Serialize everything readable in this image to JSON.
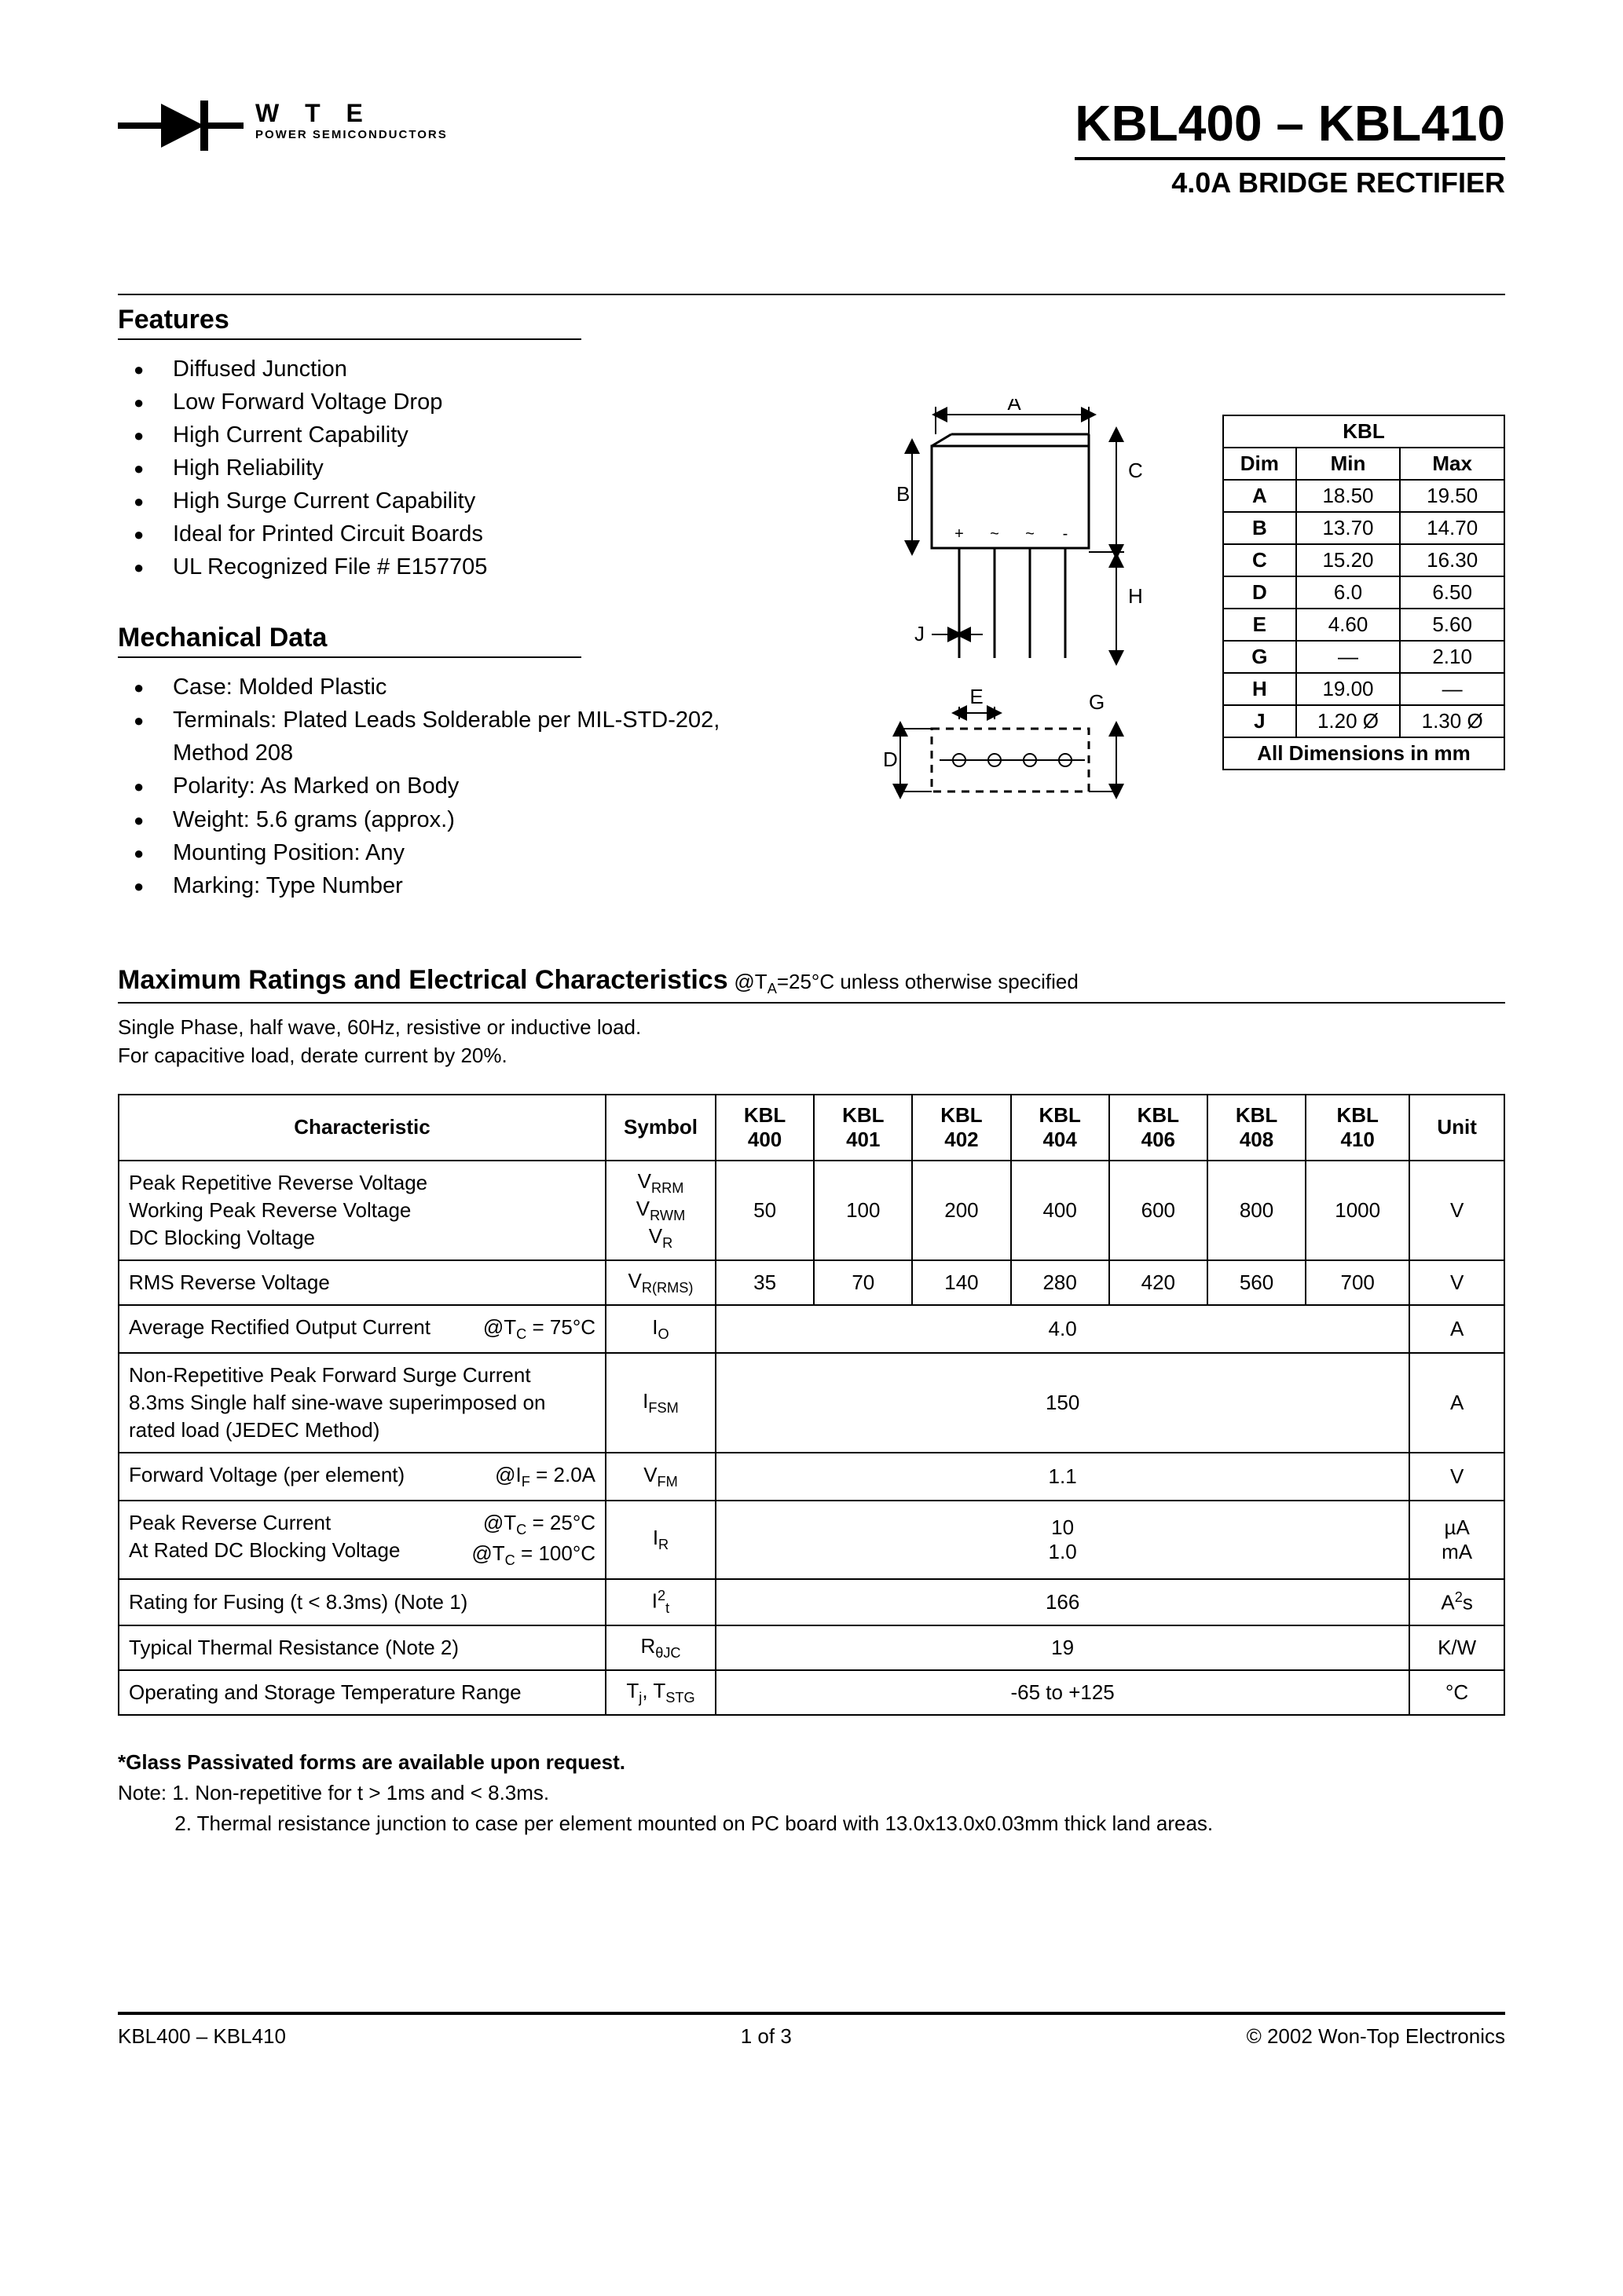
{
  "header": {
    "logo_letters": "W T E",
    "logo_sub": "POWER SEMICONDUCTORS",
    "title_main": "KBL400 – KBL410",
    "title_sub": "4.0A BRIDGE RECTIFIER"
  },
  "features": {
    "title": "Features",
    "items": [
      "Diffused Junction",
      "Low Forward Voltage Drop",
      "High Current Capability",
      "High Reliability",
      "High Surge Current Capability",
      "Ideal for Printed Circuit Boards",
      "UL Recognized File # E157705"
    ]
  },
  "mechanical": {
    "title": "Mechanical Data",
    "items": [
      "Case: Molded Plastic",
      "Terminals: Plated Leads Solderable per MIL-STD-202, Method 208",
      "Polarity: As Marked on Body",
      "Weight: 5.6 grams (approx.)",
      "Mounting Position: Any",
      "Marking: Type Number"
    ]
  },
  "diagram": {
    "labels": [
      "A",
      "B",
      "C",
      "D",
      "E",
      "G",
      "H",
      "J"
    ],
    "terminal_marks": [
      "+",
      "~",
      "~",
      "-"
    ]
  },
  "dimensions": {
    "header_span": "KBL",
    "cols": [
      "Dim",
      "Min",
      "Max"
    ],
    "rows": [
      [
        "A",
        "18.50",
        "19.50"
      ],
      [
        "B",
        "13.70",
        "14.70"
      ],
      [
        "C",
        "15.20",
        "16.30"
      ],
      [
        "D",
        "6.0",
        "6.50"
      ],
      [
        "E",
        "4.60",
        "5.60"
      ],
      [
        "G",
        "—",
        "2.10"
      ],
      [
        "H",
        "19.00",
        "—"
      ],
      [
        "J",
        "1.20 Ø",
        "1.30 Ø"
      ]
    ],
    "caption": "All Dimensions in mm"
  },
  "ratings": {
    "title": "Maximum Ratings and Electrical Characteristics",
    "condition": "@T",
    "condition_sub": "A",
    "condition_rest": "=25°C unless otherwise specified",
    "note1": "Single Phase, half wave, 60Hz, resistive or inductive load.",
    "note2": "For capacitive load, derate current by 20%.",
    "cols": [
      "Characteristic",
      "Symbol",
      "KBL 400",
      "KBL 401",
      "KBL 402",
      "KBL 404",
      "KBL 406",
      "KBL 408",
      "KBL 410",
      "Unit"
    ],
    "rows": [
      {
        "char_lines": [
          "Peak Repetitive Reverse Voltage",
          "Working Peak Reverse Voltage",
          "DC Blocking Voltage"
        ],
        "cond": "",
        "symbol_html": "V<span class='sub'>RRM</span><br>V<span class='sub'>RWM</span><br>V<span class='sub'>R</span>",
        "vals": [
          "50",
          "100",
          "200",
          "400",
          "600",
          "800",
          "1000"
        ],
        "unit": "V"
      },
      {
        "char_lines": [
          "RMS Reverse Voltage"
        ],
        "cond": "",
        "symbol_html": "V<span class='sub'>R(RMS)</span>",
        "vals": [
          "35",
          "70",
          "140",
          "280",
          "420",
          "560",
          "700"
        ],
        "unit": "V"
      },
      {
        "char_lines": [
          "Average Rectified Output Current"
        ],
        "cond": "@T<span class='sub'>C</span> = 75°C",
        "symbol_html": "I<span class='sub'>O</span>",
        "span_val": "4.0",
        "unit": "A"
      },
      {
        "char_lines": [
          "Non-Repetitive Peak Forward Surge Current",
          "8.3ms Single half sine-wave superimposed on",
          "rated load (JEDEC Method)"
        ],
        "cond": "",
        "symbol_html": "I<span class='sub'>FSM</span>",
        "span_val": "150",
        "unit": "A"
      },
      {
        "char_lines": [
          "Forward Voltage (per element)"
        ],
        "cond": "@I<span class='sub'>F</span> = 2.0A",
        "symbol_html": "V<span class='sub'>FM</span>",
        "span_val": "1.1",
        "unit": "V"
      },
      {
        "char_lines": [
          "Peak Reverse Current",
          "At Rated DC Blocking Voltage"
        ],
        "cond": "@T<span class='sub'>C</span> = 25°C<br>@T<span class='sub'>C</span> = 100°C",
        "symbol_html": "I<span class='sub'>R</span>",
        "span_val": "10<br>1.0",
        "unit": "µA<br>mA"
      },
      {
        "char_lines": [
          "Rating for Fusing (t < 8.3ms) (Note 1)"
        ],
        "cond": "",
        "symbol_html": "I<span class='sup'>2</span><span class='sub'>t</span>",
        "span_val": "166",
        "unit": "A<span class='sup'>2</span>s"
      },
      {
        "char_lines": [
          "Typical Thermal Resistance (Note 2)"
        ],
        "cond": "",
        "symbol_html": "R<span class='sub'>θJC</span>",
        "span_val": "19",
        "unit": "K/W"
      },
      {
        "char_lines": [
          "Operating and Storage Temperature Range"
        ],
        "cond": "",
        "symbol_html": "T<span class='sub'>j</span>, T<span class='sub'>STG</span>",
        "span_val": "-65 to +125",
        "unit": "°C"
      }
    ]
  },
  "footnotes": {
    "bold": "*Glass Passivated forms are available upon request.",
    "n1": "Note:  1. Non-repetitive for t > 1ms and < 8.3ms.",
    "n2": "          2. Thermal resistance junction to case per element mounted on PC board with 13.0x13.0x0.03mm thick land areas."
  },
  "footer": {
    "left": "KBL400 – KBL410",
    "center": "1  of  3",
    "right": "© 2002 Won-Top Electronics"
  },
  "style": {
    "background": "#ffffff",
    "text_color": "#000000",
    "border_color": "#000000",
    "title_fontsize_pt": 48,
    "subtitle_fontsize_pt": 27,
    "body_fontsize_pt": 21,
    "table_fontsize_pt": 19
  }
}
